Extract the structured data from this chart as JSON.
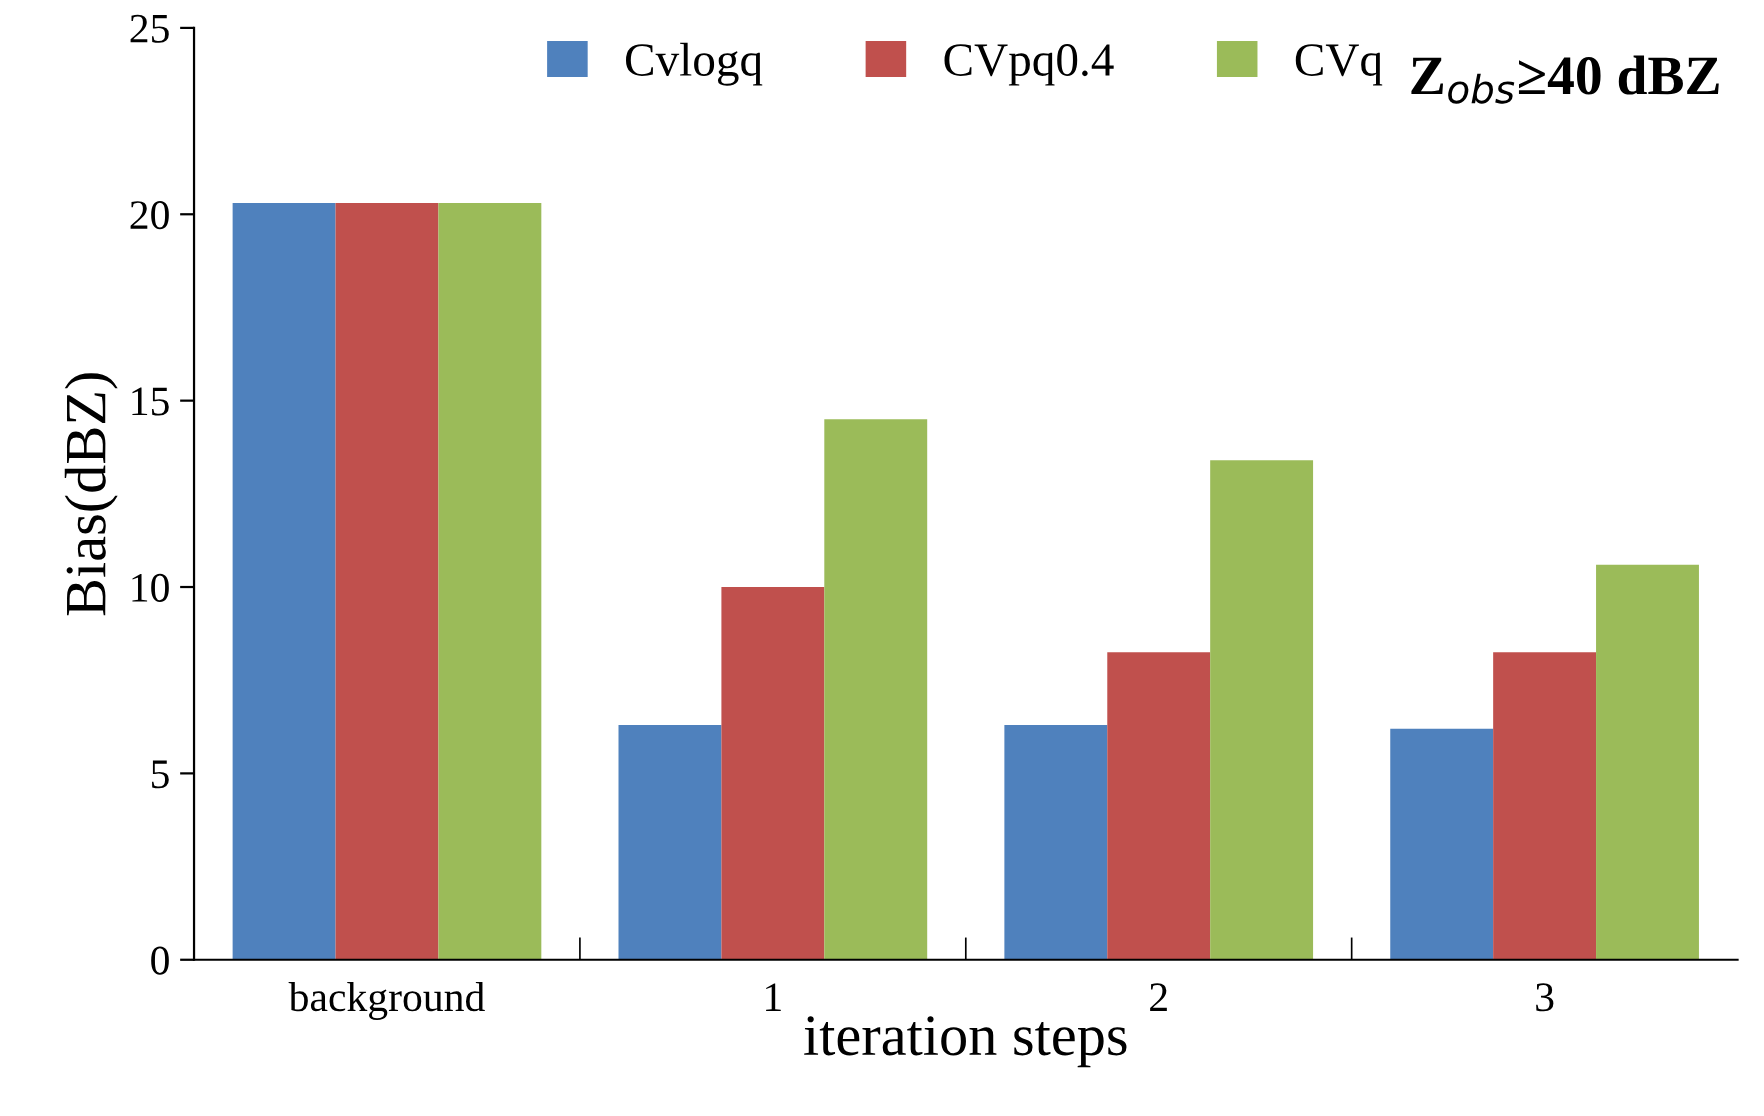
{
  "chart_data": {
    "type": "bar",
    "categories": [
      "background",
      "1",
      "2",
      "3"
    ],
    "xlabel": "iteration steps",
    "ylabel": "Bias(dBZ)",
    "annotations": [
      "Z$_{obs}$≥40 dBZ"
    ],
    "series": [
      {
        "name": "Cvlogq",
        "color": "#4f81bd",
        "values": [
          20.3,
          6.3,
          6.3,
          6.2
        ]
      },
      {
        "name": "CVpq0.4",
        "color": "#c0504d",
        "values": [
          20.3,
          10.0,
          8.25,
          8.25
        ]
      },
      {
        "name": "CVq",
        "color": "#9bbb59",
        "values": [
          20.3,
          14.5,
          13.4,
          10.6
        ]
      }
    ],
    "ylim": [
      0,
      25
    ],
    "yticks": [
      0,
      5,
      10,
      15,
      20,
      25
    ],
    "grid": false,
    "legend": "top"
  }
}
